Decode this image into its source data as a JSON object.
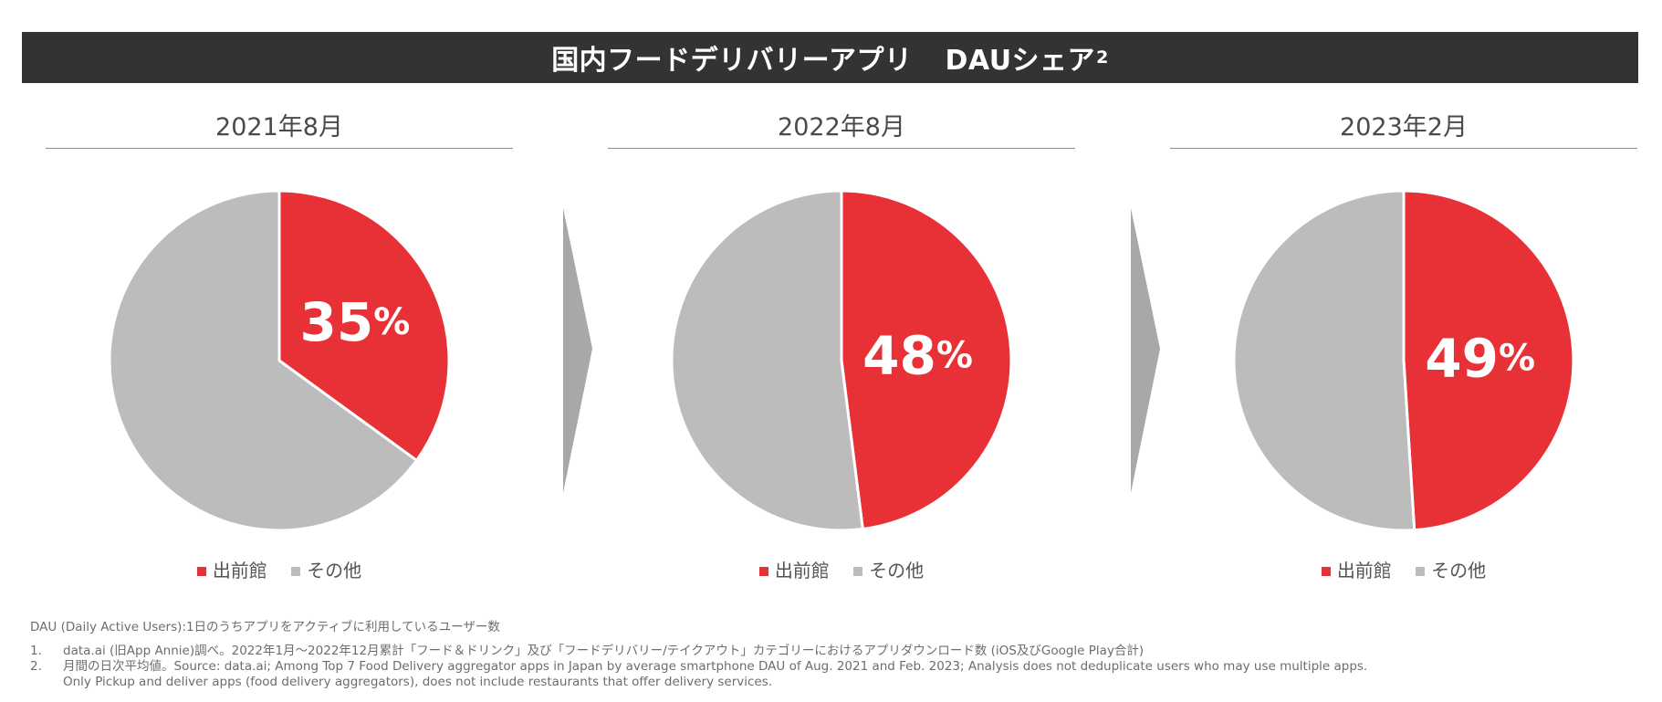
{
  "banner": {
    "title": "国内フードデリバリーアプリ",
    "title2": "DAUシェア",
    "note_ref": "2"
  },
  "colors": {
    "primary": "#e83136",
    "other": "#bcbcbc",
    "banner_bg": "#333333",
    "arrow": "#a8a9a6"
  },
  "chart_data": [
    {
      "type": "pie",
      "title": "2021年8月",
      "labels": [
        "出前館",
        "その他"
      ],
      "values": [
        35,
        65
      ],
      "data_label": "35",
      "unit": "%",
      "legend": [
        "出前館",
        "その他"
      ]
    },
    {
      "type": "pie",
      "title": "2022年8月",
      "labels": [
        "出前館",
        "その他"
      ],
      "values": [
        48,
        52
      ],
      "data_label": "48",
      "unit": "%",
      "legend": [
        "出前館",
        "その他"
      ]
    },
    {
      "type": "pie",
      "title": "2023年2月",
      "labels": [
        "出前館",
        "その他"
      ],
      "values": [
        49,
        51
      ],
      "data_label": "49",
      "unit": "%",
      "legend": [
        "出前館",
        "その他"
      ]
    }
  ],
  "footnotes": {
    "definition": "DAU (Daily Active Users):1日のうちアプリをアクティブに利用しているユーザー数",
    "notes": [
      {
        "num": "1.",
        "lines": [
          "data.ai (旧App Annie)調べ。2022年1月～2022年12月累計「フード＆ドリンク」及び「フードデリバリー/テイクアウト」カテゴリーにおけるアプリダウンロード数 (iOS及びGoogle Play合計)"
        ]
      },
      {
        "num": "2.",
        "lines": [
          "月間の日次平均値。Source: data.ai; Among Top 7 Food Delivery aggregator apps in Japan by average smartphone DAU of Aug. 2021 and Feb. 2023; Analysis does not deduplicate users who may use multiple apps.",
          "Only Pickup and deliver apps (food delivery aggregators), does not include restaurants that offer delivery services."
        ]
      }
    ]
  }
}
